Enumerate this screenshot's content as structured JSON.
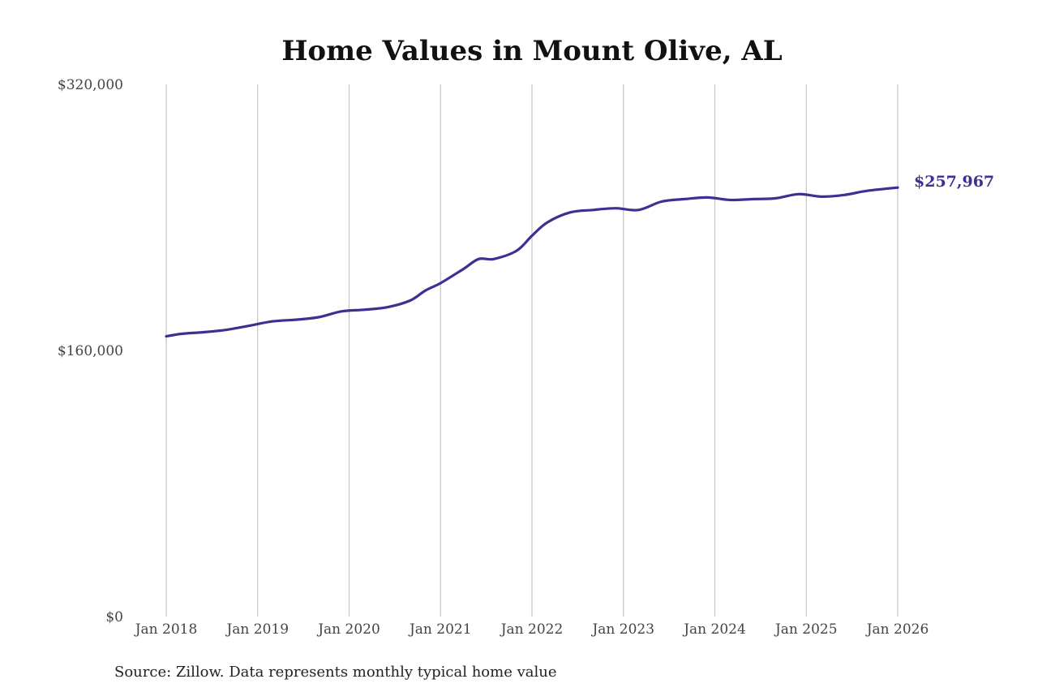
{
  "chart_data": {
    "type": "line",
    "title": "Home Values in Mount Olive, AL",
    "source": "Source: Zillow. Data represents monthly typical home value",
    "xlabel": "",
    "ylabel": "",
    "ylim": [
      0,
      320000
    ],
    "yticks": [
      {
        "value": 0,
        "label": "$0"
      },
      {
        "value": 160000,
        "label": "$160,000"
      },
      {
        "value": 320000,
        "label": "$320,000"
      }
    ],
    "xticks": [
      {
        "value": "2018-01",
        "label": "Jan 2018"
      },
      {
        "value": "2019-01",
        "label": "Jan 2019"
      },
      {
        "value": "2020-01",
        "label": "Jan 2020"
      },
      {
        "value": "2021-01",
        "label": "Jan 2021"
      },
      {
        "value": "2022-01",
        "label": "Jan 2022"
      },
      {
        "value": "2023-01",
        "label": "Jan 2023"
      },
      {
        "value": "2024-01",
        "label": "Jan 2024"
      },
      {
        "value": "2025-01",
        "label": "Jan 2025"
      },
      {
        "value": "2026-01",
        "label": "Jan 2026"
      }
    ],
    "grid": "vertical",
    "line_color": "#3a3193",
    "end_label": "$257,967",
    "series": [
      {
        "points": [
          [
            "2018-01",
            168500
          ],
          [
            "2018-03",
            170000
          ],
          [
            "2018-06",
            171000
          ],
          [
            "2018-09",
            172500
          ],
          [
            "2018-12",
            175000
          ],
          [
            "2019-03",
            177500
          ],
          [
            "2019-06",
            178500
          ],
          [
            "2019-09",
            180000
          ],
          [
            "2019-12",
            183500
          ],
          [
            "2020-03",
            184500
          ],
          [
            "2020-06",
            186000
          ],
          [
            "2020-09",
            190000
          ],
          [
            "2020-11",
            196000
          ],
          [
            "2021-01",
            200500
          ],
          [
            "2021-04",
            209000
          ],
          [
            "2021-06",
            215000
          ],
          [
            "2021-08",
            215000
          ],
          [
            "2021-11",
            220000
          ],
          [
            "2022-01",
            229000
          ],
          [
            "2022-03",
            237000
          ],
          [
            "2022-06",
            243000
          ],
          [
            "2022-09",
            244500
          ],
          [
            "2022-12",
            245500
          ],
          [
            "2023-03",
            244500
          ],
          [
            "2023-06",
            249500
          ],
          [
            "2023-09",
            251000
          ],
          [
            "2023-12",
            252000
          ],
          [
            "2024-03",
            250500
          ],
          [
            "2024-06",
            251000
          ],
          [
            "2024-09",
            251500
          ],
          [
            "2024-12",
            254000
          ],
          [
            "2025-03",
            252500
          ],
          [
            "2025-06",
            253500
          ],
          [
            "2025-09",
            256000
          ],
          [
            "2026-01",
            257967
          ]
        ]
      }
    ]
  }
}
